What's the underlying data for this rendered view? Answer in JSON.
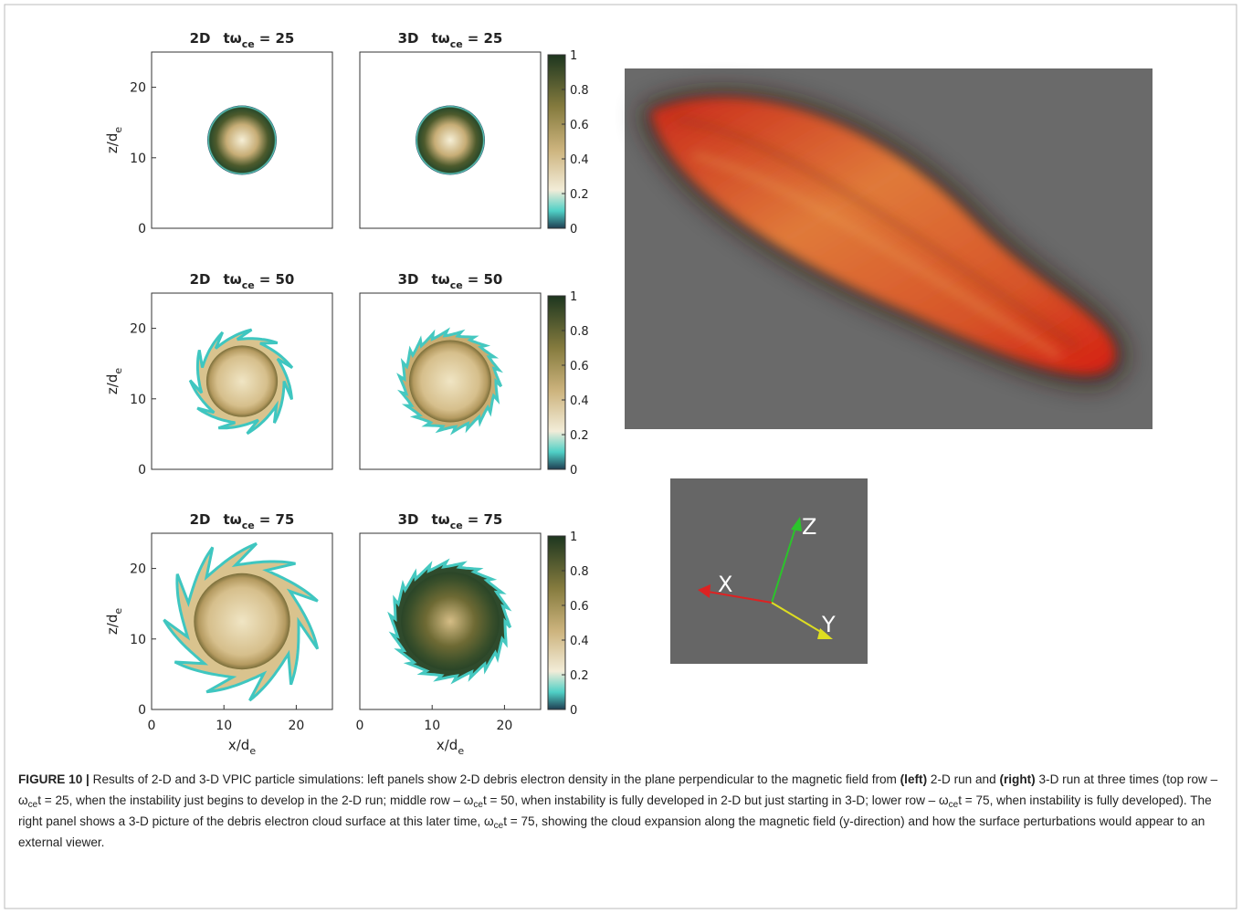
{
  "columns": [
    "2D",
    "3D"
  ],
  "time_symbol": "tω",
  "time_subscript": "ce",
  "times": [
    "= 25",
    "= 50",
    "= 75"
  ],
  "z_label": {
    "main": "z/d",
    "sub": "e"
  },
  "x_label": {
    "main": "x/d",
    "sub": "e"
  },
  "axis_ticks": [
    "0",
    "10",
    "20"
  ],
  "colorbar_ticks": [
    "0",
    "0.2",
    "0.4",
    "0.6",
    "0.8",
    "1"
  ],
  "triad": {
    "x": "X",
    "y": "Y",
    "z": "Z"
  },
  "caption": {
    "parts": [
      "FIGURE 10 |",
      " Results of 2-D and 3-D VPIC particle simulations: left panels show 2-D debris electron density in the plane perpendicular to the magnetic field from ",
      "(left)",
      " 2-D run and ",
      "(right)",
      " 3-D run at three times (top row – ω",
      "ce",
      "t = 25, when the instability just begins to develop in the 2-D run; middle row – ω",
      "ce",
      "t = 50, when instability is fully developed in 2-D but just starting in 3-D; lower row – ω",
      "ce",
      "t = 75, when instability is fully developed). The right panel shows a 3-D picture of the debris electron cloud surface at this later time, ω",
      "ce",
      "t = 75, showing the cloud expansion along the magnetic field (y-direction) and how the surface perturbations would appear to an external viewer."
    ]
  }
}
